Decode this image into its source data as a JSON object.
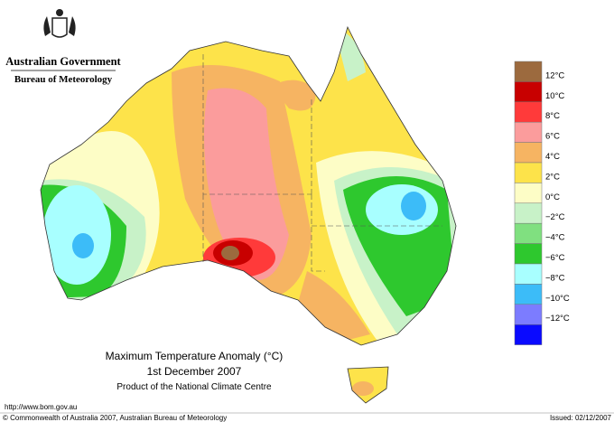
{
  "header": {
    "organisation": "Australian Government",
    "agency": "Bureau of Meteorology"
  },
  "map": {
    "title": "Maximum Temperature Anomaly (°C)",
    "date": "1st December 2007",
    "product": "Product of the National Climate Centre"
  },
  "legend": {
    "colors": [
      "#9c6a3e",
      "#c80000",
      "#ff3a3a",
      "#fb9c9c",
      "#f6b462",
      "#fde34a",
      "#fdfdc6",
      "#c8f2c8",
      "#80e080",
      "#2ec82e",
      "#a8ffff",
      "#3cbcf8",
      "#7c7cff",
      "#0a0aff"
    ],
    "labels": [
      "12°C",
      "10°C",
      "8°C",
      "6°C",
      "4°C",
      "2°C",
      "0°C",
      "−2°C",
      "−4°C",
      "−6°C",
      "−8°C",
      "−10°C",
      "−12°C"
    ]
  },
  "footer": {
    "url": "http://www.bom.gov.au",
    "copyright": "© Commonwealth of Australia 2007, Australian Bureau of Meteorology",
    "issued": "Issued: 02/12/2007"
  }
}
